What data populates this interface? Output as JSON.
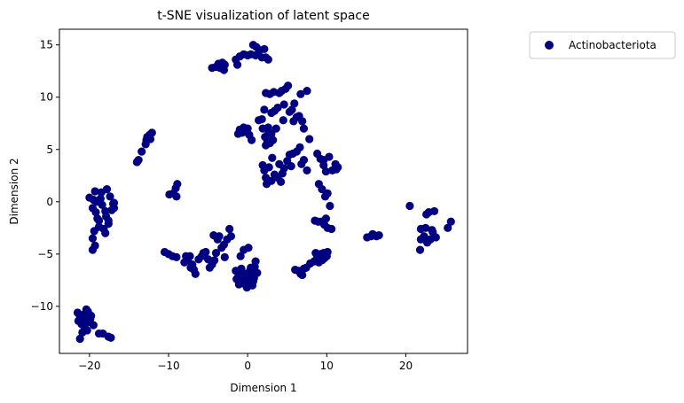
{
  "chart_data": {
    "type": "scatter",
    "title": "t-SNE visualization of latent space",
    "xlabel": "Dimension 1",
    "ylabel": "Dimension 2",
    "xlim": [
      -23.8,
      27.8
    ],
    "ylim": [
      -14.5,
      16.5
    ],
    "xticks": [
      -20,
      -10,
      0,
      10,
      20
    ],
    "yticks": [
      -10,
      -5,
      0,
      5,
      10,
      15
    ],
    "grid": false,
    "legend_position": "outside-top-right",
    "series": [
      {
        "name": "Actinobacteriota",
        "color": "#000080",
        "points": [
          [
            -21.5,
            -10.6
          ],
          [
            -21.2,
            -11.0
          ],
          [
            -20.8,
            -10.8
          ],
          [
            -20.5,
            -11.3
          ],
          [
            -20.2,
            -10.5
          ],
          [
            -21.0,
            -11.7
          ],
          [
            -20.6,
            -12.0
          ],
          [
            -20.0,
            -11.5
          ],
          [
            -19.8,
            -10.9
          ],
          [
            -21.4,
            -11.4
          ],
          [
            -20.3,
            -12.3
          ],
          [
            -19.5,
            -11.8
          ],
          [
            -21.2,
            -13.1
          ],
          [
            -18.8,
            -12.6
          ],
          [
            -18.3,
            -12.6
          ],
          [
            -17.6,
            -12.9
          ],
          [
            -17.3,
            -13.0
          ],
          [
            -20.9,
            -12.5
          ],
          [
            -20.4,
            -10.3
          ],
          [
            -19.9,
            -11.2
          ],
          [
            -20.0,
            0.4
          ],
          [
            -19.5,
            0.2
          ],
          [
            -19.1,
            0.0
          ],
          [
            -19.6,
            -0.6
          ],
          [
            -19.2,
            -1.0
          ],
          [
            -19.0,
            -1.6
          ],
          [
            -18.8,
            -2.4
          ],
          [
            -19.4,
            -2.8
          ],
          [
            -19.6,
            -3.5
          ],
          [
            -19.3,
            -4.2
          ],
          [
            -19.6,
            -4.6
          ],
          [
            -18.8,
            -1.8
          ],
          [
            -18.6,
            0.3
          ],
          [
            -18.4,
            -0.3
          ],
          [
            -18.0,
            -0.9
          ],
          [
            -17.9,
            -1.4
          ],
          [
            -17.6,
            -2.1
          ],
          [
            -18.2,
            -2.6
          ],
          [
            -17.2,
            -0.8
          ],
          [
            -17.0,
            -0.2
          ],
          [
            -16.9,
            -0.6
          ],
          [
            -17.4,
            0.5
          ],
          [
            -17.8,
            1.2
          ],
          [
            -18.5,
            0.9
          ],
          [
            -18.0,
            -3.0
          ],
          [
            -19.3,
            1.0
          ],
          [
            -17.6,
            -1.8
          ],
          [
            -16.9,
            -0.1
          ],
          [
            -14.0,
            3.8
          ],
          [
            -13.8,
            4.0
          ],
          [
            -13.4,
            4.8
          ],
          [
            -12.9,
            5.5
          ],
          [
            -12.7,
            6.2
          ],
          [
            -12.4,
            6.4
          ],
          [
            -12.1,
            6.6
          ],
          [
            -12.3,
            6.0
          ],
          [
            -12.8,
            5.9
          ],
          [
            -9.9,
            0.7
          ],
          [
            -9.4,
            0.8
          ],
          [
            -9.1,
            1.3
          ],
          [
            -8.9,
            1.7
          ],
          [
            -9.0,
            0.5
          ],
          [
            -10.5,
            -4.8
          ],
          [
            -10.0,
            -5.0
          ],
          [
            -9.5,
            -5.2
          ],
          [
            -9.0,
            -5.3
          ],
          [
            -8.0,
            -5.8
          ],
          [
            -7.6,
            -5.6
          ],
          [
            -7.3,
            -5.2
          ],
          [
            -7.0,
            -6.0
          ],
          [
            -6.8,
            -6.5
          ],
          [
            -6.6,
            -6.9
          ],
          [
            -6.2,
            -5.5
          ],
          [
            -5.8,
            -5.2
          ],
          [
            -5.3,
            -4.8
          ],
          [
            -5.0,
            -5.5
          ],
          [
            -4.8,
            -6.3
          ],
          [
            -4.5,
            -6.0
          ],
          [
            -4.2,
            -5.6
          ],
          [
            -4.0,
            -4.9
          ],
          [
            -4.3,
            -3.2
          ],
          [
            -3.8,
            -3.6
          ],
          [
            -3.3,
            -4.4
          ],
          [
            -3.0,
            -4.1
          ],
          [
            -2.9,
            -5.3
          ],
          [
            -2.6,
            -3.6
          ],
          [
            -2.3,
            -2.6
          ],
          [
            -2.1,
            -3.3
          ],
          [
            -7.8,
            -5.2
          ],
          [
            -7.2,
            -6.3
          ],
          [
            -5.6,
            -4.9
          ],
          [
            -3.6,
            -3.3
          ],
          [
            -1.5,
            -6.6
          ],
          [
            -1.2,
            -7.2
          ],
          [
            -0.8,
            -6.4
          ],
          [
            -0.6,
            -7.8
          ],
          [
            -0.3,
            -6.9
          ],
          [
            0.0,
            -7.4
          ],
          [
            0.3,
            -6.6
          ],
          [
            0.5,
            -7.0
          ],
          [
            0.7,
            -7.6
          ],
          [
            0.2,
            -7.9
          ],
          [
            -0.4,
            -7.5
          ],
          [
            0.9,
            -6.2
          ],
          [
            1.0,
            -5.7
          ],
          [
            -0.9,
            -5.2
          ],
          [
            -0.5,
            -4.6
          ],
          [
            0.1,
            -4.4
          ],
          [
            1.2,
            -6.8
          ],
          [
            -1.1,
            -7.9
          ],
          [
            -0.1,
            -8.2
          ],
          [
            0.6,
            -8.0
          ],
          [
            -1.4,
            -7.4
          ],
          [
            0.4,
            -6.3
          ],
          [
            -0.7,
            -7.0
          ],
          [
            0.8,
            -7.3
          ],
          [
            -4.5,
            12.8
          ],
          [
            -4.0,
            12.9
          ],
          [
            -3.7,
            13.2
          ],
          [
            -3.5,
            12.8
          ],
          [
            -3.2,
            13.3
          ],
          [
            -2.9,
            13.1
          ],
          [
            -3.0,
            12.6
          ],
          [
            -1.3,
            13.1
          ],
          [
            -1.0,
            13.9
          ],
          [
            -0.5,
            14.1
          ],
          [
            0.0,
            14.0
          ],
          [
            0.4,
            14.1
          ],
          [
            0.7,
            15.0
          ],
          [
            1.1,
            14.8
          ],
          [
            1.5,
            14.5
          ],
          [
            1.8,
            13.8
          ],
          [
            2.1,
            14.6
          ],
          [
            2.3,
            13.8
          ],
          [
            2.6,
            13.6
          ],
          [
            1.0,
            14.0
          ],
          [
            -1.5,
            13.6
          ],
          [
            1.4,
            7.8
          ],
          [
            1.8,
            7.9
          ],
          [
            2.1,
            8.8
          ],
          [
            2.3,
            10.4
          ],
          [
            2.6,
            7.1
          ],
          [
            2.8,
            10.3
          ],
          [
            3.0,
            8.5
          ],
          [
            3.3,
            10.5
          ],
          [
            3.4,
            8.7
          ],
          [
            3.8,
            9.0
          ],
          [
            4.0,
            10.4
          ],
          [
            4.3,
            10.6
          ],
          [
            4.6,
            9.3
          ],
          [
            4.8,
            10.8
          ],
          [
            5.1,
            11.1
          ],
          [
            5.3,
            8.6
          ],
          [
            5.6,
            8.8
          ],
          [
            5.9,
            9.4
          ],
          [
            6.2,
            8.1
          ],
          [
            6.5,
            8.2
          ],
          [
            6.9,
            7.7
          ],
          [
            7.1,
            7.0
          ],
          [
            7.5,
            10.6
          ],
          [
            7.8,
            6.0
          ],
          [
            3.6,
            7.0
          ],
          [
            4.5,
            7.8
          ],
          [
            5.8,
            7.7
          ],
          [
            6.7,
            10.3
          ],
          [
            -1.0,
            6.9
          ],
          [
            -0.7,
            6.6
          ],
          [
            -0.5,
            7.1
          ],
          [
            -0.2,
            6.7
          ],
          [
            0.2,
            6.4
          ],
          [
            0.5,
            5.9
          ],
          [
            -1.2,
            6.5
          ],
          [
            0.0,
            7.0
          ],
          [
            1.9,
            7.0
          ],
          [
            2.2,
            6.2
          ],
          [
            2.5,
            5.8
          ],
          [
            2.8,
            5.6
          ],
          [
            2.3,
            5.4
          ],
          [
            3.0,
            6.5
          ],
          [
            3.2,
            5.9
          ],
          [
            2.6,
            6.8
          ],
          [
            1.9,
            3.5
          ],
          [
            2.1,
            3.0
          ],
          [
            2.3,
            2.3
          ],
          [
            2.4,
            1.7
          ],
          [
            2.7,
            3.3
          ],
          [
            3.0,
            2.0
          ],
          [
            3.4,
            2.6
          ],
          [
            3.8,
            2.3
          ],
          [
            4.2,
            1.9
          ],
          [
            4.4,
            2.7
          ],
          [
            4.6,
            3.2
          ],
          [
            5.0,
            3.9
          ],
          [
            5.3,
            4.5
          ],
          [
            5.7,
            4.6
          ],
          [
            6.2,
            4.8
          ],
          [
            6.6,
            5.2
          ],
          [
            7.1,
            4.0
          ],
          [
            7.5,
            3.0
          ],
          [
            4.0,
            3.6
          ],
          [
            3.1,
            4.2
          ],
          [
            5.5,
            3.4
          ],
          [
            6.8,
            3.6
          ],
          [
            8.8,
            4.6
          ],
          [
            9.2,
            4.1
          ],
          [
            9.6,
            3.5
          ],
          [
            9.9,
            2.9
          ],
          [
            10.3,
            4.3
          ],
          [
            10.7,
            3.0
          ],
          [
            11.1,
            3.6
          ],
          [
            11.4,
            3.3
          ],
          [
            9.0,
            1.7
          ],
          [
            9.4,
            1.2
          ],
          [
            9.8,
            0.5
          ],
          [
            10.1,
            0.8
          ],
          [
            9.6,
            4.0
          ],
          [
            11.2,
            3.1
          ],
          [
            8.5,
            -1.8
          ],
          [
            8.9,
            -1.9
          ],
          [
            9.3,
            -1.9
          ],
          [
            9.7,
            -2.2
          ],
          [
            10.1,
            -2.5
          ],
          [
            10.4,
            -0.4
          ],
          [
            10.6,
            -2.6
          ],
          [
            9.9,
            -1.6
          ],
          [
            6.0,
            -6.5
          ],
          [
            6.4,
            -6.6
          ],
          [
            6.7,
            -6.9
          ],
          [
            7.1,
            -6.4
          ],
          [
            7.4,
            -6.3
          ],
          [
            7.9,
            -5.9
          ],
          [
            8.4,
            -5.7
          ],
          [
            8.8,
            -5.3
          ],
          [
            9.2,
            -5.0
          ],
          [
            9.6,
            -4.9
          ],
          [
            10.0,
            -5.2
          ],
          [
            9.4,
            -5.6
          ],
          [
            9.0,
            -5.8
          ],
          [
            9.7,
            -5.4
          ],
          [
            8.6,
            -4.9
          ],
          [
            10.1,
            -4.8
          ],
          [
            6.9,
            -7.0
          ],
          [
            15.1,
            -3.4
          ],
          [
            15.6,
            -3.3
          ],
          [
            16.0,
            -3.2
          ],
          [
            16.3,
            -3.3
          ],
          [
            16.6,
            -3.2
          ],
          [
            15.8,
            -3.1
          ],
          [
            20.5,
            -0.4
          ],
          [
            21.8,
            -4.6
          ],
          [
            21.9,
            -2.6
          ],
          [
            22.3,
            -3.3
          ],
          [
            22.5,
            -2.5
          ],
          [
            22.7,
            -3.9
          ],
          [
            22.9,
            -1.0
          ],
          [
            23.1,
            -3.6
          ],
          [
            23.3,
            -2.7
          ],
          [
            23.6,
            -0.9
          ],
          [
            23.8,
            -3.4
          ],
          [
            22.6,
            -1.2
          ],
          [
            21.9,
            -3.6
          ],
          [
            25.3,
            -2.5
          ],
          [
            25.7,
            -1.9
          ],
          [
            23.4,
            -2.9
          ]
        ]
      }
    ]
  }
}
